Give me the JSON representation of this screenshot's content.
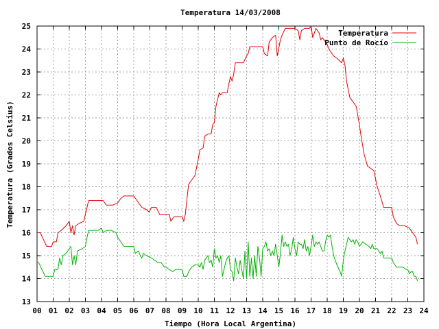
{
  "chart_data": {
    "type": "line",
    "title": "Temperatura 14/03/2008",
    "xlabel": "Tiempo (Hora Local Argentina)",
    "ylabel": "Temperatura (Grados Celsius)",
    "xlim": [
      0,
      24
    ],
    "ylim": [
      13,
      25
    ],
    "xticks": [
      "00",
      "01",
      "02",
      "03",
      "04",
      "05",
      "06",
      "07",
      "08",
      "09",
      "10",
      "11",
      "12",
      "13",
      "14",
      "15",
      "16",
      "17",
      "18",
      "19",
      "20",
      "21",
      "22",
      "23",
      "24"
    ],
    "yticks": [
      "13",
      "14",
      "15",
      "16",
      "17",
      "18",
      "19",
      "20",
      "21",
      "22",
      "23",
      "24",
      "25"
    ],
    "grid": true,
    "legend_position": "top-right",
    "series": [
      {
        "name": "Temperatura",
        "color": "#e00000",
        "points": [
          [
            0.0,
            16.0
          ],
          [
            0.2,
            16.0
          ],
          [
            0.4,
            15.7
          ],
          [
            0.6,
            15.4
          ],
          [
            0.9,
            15.4
          ],
          [
            1.0,
            15.6
          ],
          [
            1.2,
            15.6
          ],
          [
            1.3,
            16.0
          ],
          [
            1.5,
            16.1
          ],
          [
            1.8,
            16.3
          ],
          [
            2.0,
            16.5
          ],
          [
            2.1,
            16.0
          ],
          [
            2.2,
            16.3
          ],
          [
            2.3,
            15.9
          ],
          [
            2.4,
            16.3
          ],
          [
            2.6,
            16.4
          ],
          [
            2.9,
            16.5
          ],
          [
            3.0,
            16.8
          ],
          [
            3.2,
            17.4
          ],
          [
            3.5,
            17.4
          ],
          [
            3.8,
            17.4
          ],
          [
            4.1,
            17.4
          ],
          [
            4.3,
            17.2
          ],
          [
            4.5,
            17.2
          ],
          [
            4.7,
            17.2
          ],
          [
            5.0,
            17.3
          ],
          [
            5.2,
            17.5
          ],
          [
            5.4,
            17.6
          ],
          [
            5.7,
            17.6
          ],
          [
            6.0,
            17.6
          ],
          [
            6.2,
            17.4
          ],
          [
            6.5,
            17.1
          ],
          [
            6.8,
            17.0
          ],
          [
            6.95,
            16.9
          ],
          [
            7.1,
            17.1
          ],
          [
            7.4,
            17.1
          ],
          [
            7.6,
            16.8
          ],
          [
            8.0,
            16.8
          ],
          [
            8.2,
            16.8
          ],
          [
            8.3,
            16.5
          ],
          [
            8.5,
            16.7
          ],
          [
            8.8,
            16.7
          ],
          [
            9.0,
            16.7
          ],
          [
            9.1,
            16.5
          ],
          [
            9.2,
            16.8
          ],
          [
            9.4,
            18.1
          ],
          [
            9.6,
            18.3
          ],
          [
            9.8,
            18.5
          ],
          [
            10.0,
            19.2
          ],
          [
            10.1,
            19.6
          ],
          [
            10.3,
            19.7
          ],
          [
            10.4,
            20.2
          ],
          [
            10.6,
            20.3
          ],
          [
            10.8,
            20.3
          ],
          [
            10.9,
            20.7
          ],
          [
            11.0,
            20.8
          ],
          [
            11.1,
            21.5
          ],
          [
            11.2,
            21.8
          ],
          [
            11.3,
            22.1
          ],
          [
            11.4,
            22.0
          ],
          [
            11.5,
            22.1
          ],
          [
            11.8,
            22.1
          ],
          [
            11.9,
            22.5
          ],
          [
            12.0,
            22.8
          ],
          [
            12.1,
            22.6
          ],
          [
            12.2,
            22.9
          ],
          [
            12.3,
            23.4
          ],
          [
            12.6,
            23.4
          ],
          [
            12.8,
            23.4
          ],
          [
            13.0,
            23.7
          ],
          [
            13.1,
            23.8
          ],
          [
            13.2,
            24.1
          ],
          [
            13.5,
            24.1
          ],
          [
            13.8,
            24.1
          ],
          [
            14.0,
            24.1
          ],
          [
            14.1,
            23.8
          ],
          [
            14.3,
            23.7
          ],
          [
            14.4,
            24.3
          ],
          [
            14.6,
            24.5
          ],
          [
            14.8,
            24.6
          ],
          [
            14.9,
            23.7
          ],
          [
            15.1,
            24.4
          ],
          [
            15.2,
            24.6
          ],
          [
            15.4,
            24.9
          ],
          [
            15.7,
            24.9
          ],
          [
            16.0,
            24.9
          ],
          [
            16.2,
            24.8
          ],
          [
            16.3,
            24.4
          ],
          [
            16.4,
            24.8
          ],
          [
            16.6,
            24.9
          ],
          [
            16.9,
            24.9
          ],
          [
            17.0,
            25.0
          ],
          [
            17.1,
            24.5
          ],
          [
            17.3,
            24.9
          ],
          [
            17.5,
            24.7
          ],
          [
            17.6,
            24.4
          ],
          [
            17.7,
            24.5
          ],
          [
            18.0,
            24.2
          ],
          [
            18.1,
            24.0
          ],
          [
            18.4,
            23.7
          ],
          [
            18.6,
            23.6
          ],
          [
            18.9,
            23.4
          ],
          [
            19.0,
            23.6
          ],
          [
            19.1,
            23.3
          ],
          [
            19.2,
            22.6
          ],
          [
            19.4,
            21.9
          ],
          [
            19.7,
            21.6
          ],
          [
            19.8,
            21.5
          ],
          [
            20.0,
            20.7
          ],
          [
            20.1,
            20.2
          ],
          [
            20.3,
            19.4
          ],
          [
            20.5,
            18.9
          ],
          [
            20.7,
            18.8
          ],
          [
            20.9,
            18.7
          ],
          [
            21.1,
            18.0
          ],
          [
            21.3,
            17.6
          ],
          [
            21.5,
            17.1
          ],
          [
            21.8,
            17.1
          ],
          [
            22.0,
            17.1
          ],
          [
            22.1,
            16.7
          ],
          [
            22.3,
            16.4
          ],
          [
            22.5,
            16.3
          ],
          [
            22.8,
            16.3
          ],
          [
            23.1,
            16.2
          ],
          [
            23.3,
            16.0
          ],
          [
            23.5,
            15.8
          ],
          [
            23.6,
            15.5
          ]
        ]
      },
      {
        "name": "Punto de Rocío",
        "color": "#00b000",
        "points": [
          [
            0.0,
            14.7
          ],
          [
            0.1,
            14.7
          ],
          [
            0.3,
            14.4
          ],
          [
            0.5,
            14.1
          ],
          [
            0.8,
            14.1
          ],
          [
            1.0,
            14.1
          ],
          [
            1.1,
            14.4
          ],
          [
            1.3,
            14.4
          ],
          [
            1.4,
            14.9
          ],
          [
            1.5,
            14.6
          ],
          [
            1.6,
            15.0
          ],
          [
            1.8,
            15.1
          ],
          [
            1.9,
            15.2
          ],
          [
            2.0,
            15.3
          ],
          [
            2.1,
            15.4
          ],
          [
            2.2,
            14.6
          ],
          [
            2.3,
            15.0
          ],
          [
            2.4,
            14.6
          ],
          [
            2.5,
            15.2
          ],
          [
            2.8,
            15.3
          ],
          [
            3.0,
            15.4
          ],
          [
            3.1,
            15.8
          ],
          [
            3.2,
            16.1
          ],
          [
            3.5,
            16.1
          ],
          [
            3.8,
            16.1
          ],
          [
            4.0,
            16.2
          ],
          [
            4.1,
            16.0
          ],
          [
            4.3,
            16.1
          ],
          [
            4.6,
            16.1
          ],
          [
            4.9,
            16.0
          ],
          [
            5.0,
            15.8
          ],
          [
            5.2,
            15.6
          ],
          [
            5.4,
            15.4
          ],
          [
            5.7,
            15.4
          ],
          [
            6.0,
            15.4
          ],
          [
            6.1,
            15.1
          ],
          [
            6.3,
            15.2
          ],
          [
            6.4,
            15.0
          ],
          [
            6.5,
            14.9
          ],
          [
            6.6,
            15.1
          ],
          [
            6.8,
            15.0
          ],
          [
            7.1,
            14.9
          ],
          [
            7.3,
            14.8
          ],
          [
            7.5,
            14.7
          ],
          [
            7.7,
            14.7
          ],
          [
            7.9,
            14.5
          ],
          [
            8.0,
            14.5
          ],
          [
            8.2,
            14.4
          ],
          [
            8.4,
            14.3
          ],
          [
            8.6,
            14.4
          ],
          [
            8.8,
            14.4
          ],
          [
            9.0,
            14.4
          ],
          [
            9.1,
            14.1
          ],
          [
            9.3,
            14.1
          ],
          [
            9.4,
            14.3
          ],
          [
            9.6,
            14.5
          ],
          [
            9.8,
            14.6
          ],
          [
            10.0,
            14.6
          ],
          [
            10.1,
            14.5
          ],
          [
            10.2,
            14.7
          ],
          [
            10.3,
            14.4
          ],
          [
            10.4,
            14.8
          ],
          [
            10.6,
            15.0
          ],
          [
            10.7,
            14.7
          ],
          [
            10.8,
            14.8
          ],
          [
            10.9,
            14.5
          ],
          [
            11.0,
            15.3
          ],
          [
            11.1,
            14.9
          ],
          [
            11.2,
            15.0
          ],
          [
            11.3,
            14.7
          ],
          [
            11.4,
            15.0
          ],
          [
            11.5,
            14.1
          ],
          [
            11.6,
            14.4
          ],
          [
            11.7,
            14.7
          ],
          [
            11.8,
            14.9
          ],
          [
            11.9,
            15.0
          ],
          [
            12.0,
            14.4
          ],
          [
            12.1,
            14.3
          ],
          [
            12.2,
            13.9
          ],
          [
            12.3,
            14.9
          ],
          [
            12.4,
            14.5
          ],
          [
            12.5,
            14.2
          ],
          [
            12.6,
            14.8
          ],
          [
            12.7,
            14.4
          ],
          [
            12.8,
            14.0
          ],
          [
            12.9,
            15.2
          ],
          [
            13.0,
            14.0
          ],
          [
            13.1,
            15.6
          ],
          [
            13.2,
            14.1
          ],
          [
            13.3,
            14.9
          ],
          [
            13.4,
            14.0
          ],
          [
            13.5,
            15.0
          ],
          [
            13.6,
            14.1
          ],
          [
            13.7,
            15.4
          ],
          [
            13.8,
            14.9
          ],
          [
            13.9,
            14.1
          ],
          [
            14.0,
            15.3
          ],
          [
            14.1,
            15.4
          ],
          [
            14.2,
            15.6
          ],
          [
            14.3,
            15.2
          ],
          [
            14.4,
            15.3
          ],
          [
            14.5,
            15.0
          ],
          [
            14.6,
            15.2
          ],
          [
            14.7,
            15.0
          ],
          [
            14.8,
            15.5
          ],
          [
            14.9,
            15.0
          ],
          [
            15.0,
            14.5
          ],
          [
            15.1,
            15.1
          ],
          [
            15.2,
            15.9
          ],
          [
            15.3,
            15.4
          ],
          [
            15.4,
            15.6
          ],
          [
            15.5,
            15.4
          ],
          [
            15.6,
            15.5
          ],
          [
            15.7,
            15.0
          ],
          [
            15.8,
            15.3
          ],
          [
            15.9,
            15.8
          ],
          [
            16.0,
            15.3
          ],
          [
            16.1,
            15.0
          ],
          [
            16.2,
            15.6
          ],
          [
            16.3,
            15.5
          ],
          [
            16.4,
            15.5
          ],
          [
            16.5,
            15.3
          ],
          [
            16.6,
            15.7
          ],
          [
            16.7,
            15.2
          ],
          [
            16.8,
            15.4
          ],
          [
            16.9,
            15.0
          ],
          [
            17.0,
            15.4
          ],
          [
            17.1,
            15.9
          ],
          [
            17.2,
            15.4
          ],
          [
            17.3,
            15.6
          ],
          [
            17.4,
            15.5
          ],
          [
            17.5,
            15.6
          ],
          [
            17.6,
            15.4
          ],
          [
            17.7,
            15.2
          ],
          [
            17.8,
            15.2
          ],
          [
            17.9,
            15.6
          ],
          [
            18.0,
            15.9
          ],
          [
            18.1,
            15.8
          ],
          [
            18.2,
            15.9
          ],
          [
            18.3,
            15.4
          ],
          [
            18.4,
            15.0
          ],
          [
            18.5,
            14.8
          ],
          [
            18.6,
            14.6
          ],
          [
            18.8,
            14.3
          ],
          [
            18.9,
            14.1
          ],
          [
            19.0,
            14.8
          ],
          [
            19.1,
            15.2
          ],
          [
            19.2,
            15.5
          ],
          [
            19.3,
            15.8
          ],
          [
            19.4,
            15.7
          ],
          [
            19.5,
            15.6
          ],
          [
            19.6,
            15.7
          ],
          [
            19.7,
            15.5
          ],
          [
            19.8,
            15.7
          ],
          [
            19.9,
            15.6
          ],
          [
            20.0,
            15.4
          ],
          [
            20.2,
            15.6
          ],
          [
            20.4,
            15.5
          ],
          [
            20.6,
            15.4
          ],
          [
            20.7,
            15.3
          ],
          [
            20.8,
            15.5
          ],
          [
            20.9,
            15.3
          ],
          [
            21.1,
            15.3
          ],
          [
            21.2,
            15.2
          ],
          [
            21.3,
            15.1
          ],
          [
            21.4,
            15.2
          ],
          [
            21.5,
            14.9
          ],
          [
            21.8,
            14.9
          ],
          [
            22.0,
            14.9
          ],
          [
            22.1,
            14.7
          ],
          [
            22.3,
            14.5
          ],
          [
            22.5,
            14.5
          ],
          [
            22.7,
            14.5
          ],
          [
            22.9,
            14.4
          ],
          [
            23.0,
            14.4
          ],
          [
            23.1,
            14.2
          ],
          [
            23.2,
            14.3
          ],
          [
            23.3,
            14.3
          ],
          [
            23.4,
            14.1
          ],
          [
            23.5,
            14.1
          ],
          [
            23.6,
            13.9
          ]
        ]
      }
    ]
  }
}
